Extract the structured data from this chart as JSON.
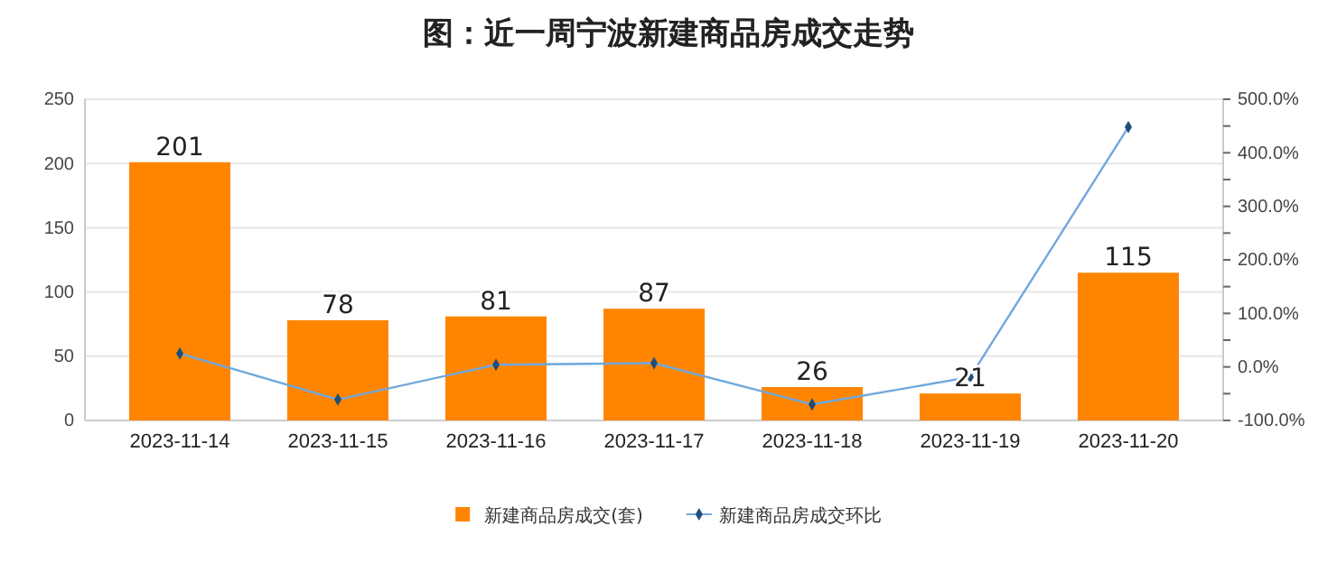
{
  "chart_data": {
    "type": "bar",
    "title": "图：近一周宁波新建商品房成交走势",
    "categories": [
      "2023-11-14",
      "2023-11-15",
      "2023-11-16",
      "2023-11-17",
      "2023-11-18",
      "2023-11-19",
      "2023-11-20"
    ],
    "series": [
      {
        "name": "新建商品房成交(套)",
        "color": "#ff8500",
        "values": [
          201,
          78,
          81,
          87,
          26,
          21,
          115
        ],
        "value_labels": [
          "201",
          "78",
          "81",
          "87",
          "26",
          "21",
          "115"
        ]
      },
      {
        "name": "新建商品房成交环比",
        "type": "line",
        "axis": "y2",
        "color": "#6fa8dc",
        "values": [
          25,
          -61,
          4,
          7,
          -70,
          -19,
          448
        ]
      }
    ],
    "ylim": [
      0,
      250
    ],
    "yticks": [
      0,
      50,
      100,
      150,
      200,
      250
    ],
    "y2lim": [
      -100,
      500
    ],
    "y2ticks": [
      {
        "value": -100,
        "label": "-100.0%"
      },
      {
        "value": -50,
        "label": null
      },
      {
        "value": 0,
        "label": "0.0%"
      },
      {
        "value": 50,
        "label": null
      },
      {
        "value": 100,
        "label": "100.0%"
      },
      {
        "value": 150,
        "label": null
      },
      {
        "value": 200,
        "label": "200.0%"
      },
      {
        "value": 250,
        "label": null
      },
      {
        "value": 300,
        "label": "300.0%"
      },
      {
        "value": 350,
        "label": null
      },
      {
        "value": 400,
        "label": "400.0%"
      },
      {
        "value": 450,
        "label": null
      },
      {
        "value": 500,
        "label": "500.0%"
      }
    ],
    "grid": "y",
    "legend": "bottom",
    "marker": "diamond",
    "line_style": "solid"
  }
}
